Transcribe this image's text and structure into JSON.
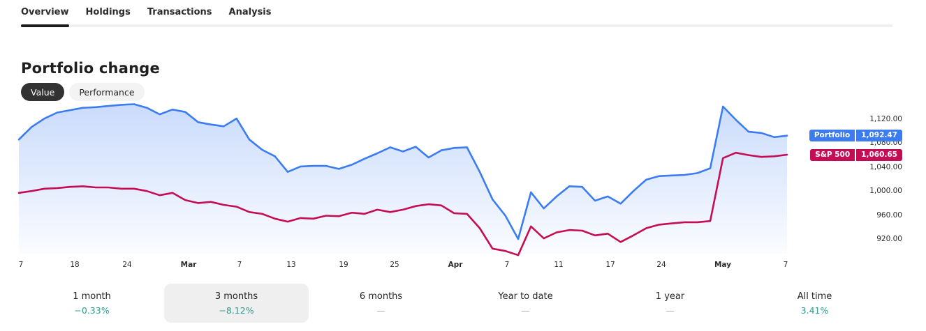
{
  "colors": {
    "portfolio_blue": "#3b7cf2",
    "sp500_crimson": "#c50d56",
    "positive_teal": "#2a9c8e",
    "muted_dash": "#a8a8a8",
    "fill_gradient_top": "rgba(59,124,242,0.28)",
    "fill_gradient_bottom": "rgba(59,124,242,0.02)"
  },
  "tabs": {
    "items": [
      {
        "label": "Overview",
        "active": true
      },
      {
        "label": "Holdings",
        "active": false
      },
      {
        "label": "Transactions",
        "active": false
      },
      {
        "label": "Analysis",
        "active": false
      }
    ]
  },
  "header": {
    "title": "Portfolio change"
  },
  "view_toggle": {
    "options": [
      {
        "label": "Value",
        "selected": true
      },
      {
        "label": "Performance",
        "selected": false
      }
    ]
  },
  "chart_data": {
    "type": "area",
    "title": "Portfolio change",
    "legend_position": "right-badges",
    "grid": false,
    "y_axis": {
      "side": "right",
      "ticks": [
        {
          "value": 1120,
          "label": "1,120.00"
        },
        {
          "value": 1080,
          "label": "1,080.00"
        },
        {
          "value": 1040,
          "label": "1,040.00"
        },
        {
          "value": 1000,
          "label": "1,000.00"
        },
        {
          "value": 960,
          "label": "960.00"
        },
        {
          "value": 920,
          "label": "920.00"
        }
      ],
      "range": [
        880,
        1160
      ]
    },
    "x_axis": {
      "ticks": [
        {
          "label": "7",
          "bold": false
        },
        {
          "label": "18",
          "bold": false
        },
        {
          "label": "24",
          "bold": false
        },
        {
          "label": "Mar",
          "bold": true
        },
        {
          "label": "7",
          "bold": false
        },
        {
          "label": "13",
          "bold": false
        },
        {
          "label": "19",
          "bold": false
        },
        {
          "label": "25",
          "bold": false
        },
        {
          "label": "Apr",
          "bold": true
        },
        {
          "label": "7",
          "bold": false
        },
        {
          "label": "11",
          "bold": false
        },
        {
          "label": "17",
          "bold": false
        },
        {
          "label": "24",
          "bold": false
        },
        {
          "label": "May",
          "bold": true
        },
        {
          "label": "7",
          "bold": false
        }
      ]
    },
    "series": [
      {
        "name": "Portfolio",
        "color_key": "portfolio_blue",
        "fill": true,
        "current_value": 1092.47,
        "current_label": "1,092.47",
        "values": [
          1086,
          1107,
          1121,
          1131,
          1135,
          1139,
          1140,
          1142,
          1144,
          1145,
          1139,
          1128,
          1136,
          1132,
          1115,
          1111,
          1108,
          1121,
          1086,
          1069,
          1058,
          1032,
          1041,
          1042,
          1042,
          1037,
          1044,
          1054,
          1063,
          1073,
          1066,
          1074,
          1056,
          1068,
          1072,
          1073,
          1032,
          986,
          959,
          920,
          998,
          971,
          991,
          1008,
          1007,
          984,
          991,
          979,
          1000,
          1019,
          1025,
          1026,
          1027,
          1030,
          1038,
          1141,
          1119,
          1099,
          1097,
          1090,
          1092.47
        ]
      },
      {
        "name": "S&P 500",
        "color_key": "sp500_crimson",
        "fill": false,
        "current_value": 1060.65,
        "current_label": "1,060.65",
        "values": [
          997,
          1000,
          1004,
          1005,
          1007,
          1008,
          1006,
          1006,
          1004,
          1004,
          1000,
          993,
          997,
          985,
          980,
          982,
          977,
          974,
          965,
          962,
          954,
          949,
          955,
          954,
          959,
          958,
          964,
          962,
          969,
          965,
          969,
          975,
          978,
          976,
          963,
          962,
          938,
          904,
          900,
          893,
          941,
          921,
          931,
          935,
          934,
          926,
          929,
          915,
          926,
          938,
          944,
          946,
          948,
          948,
          950,
          1055,
          1064,
          1060,
          1057,
          1058,
          1060.65
        ]
      }
    ]
  },
  "periods": {
    "items": [
      {
        "label": "1 month",
        "value": "−0.33%",
        "muted": false,
        "selected": false
      },
      {
        "label": "3 months",
        "value": "−8.12%",
        "muted": false,
        "selected": true
      },
      {
        "label": "6 months",
        "value": "—",
        "muted": true,
        "selected": false
      },
      {
        "label": "Year to date",
        "value": "—",
        "muted": true,
        "selected": false
      },
      {
        "label": "1 year",
        "value": "—",
        "muted": true,
        "selected": false
      },
      {
        "label": "All time",
        "value": "3.41%",
        "muted": false,
        "selected": false
      }
    ]
  }
}
